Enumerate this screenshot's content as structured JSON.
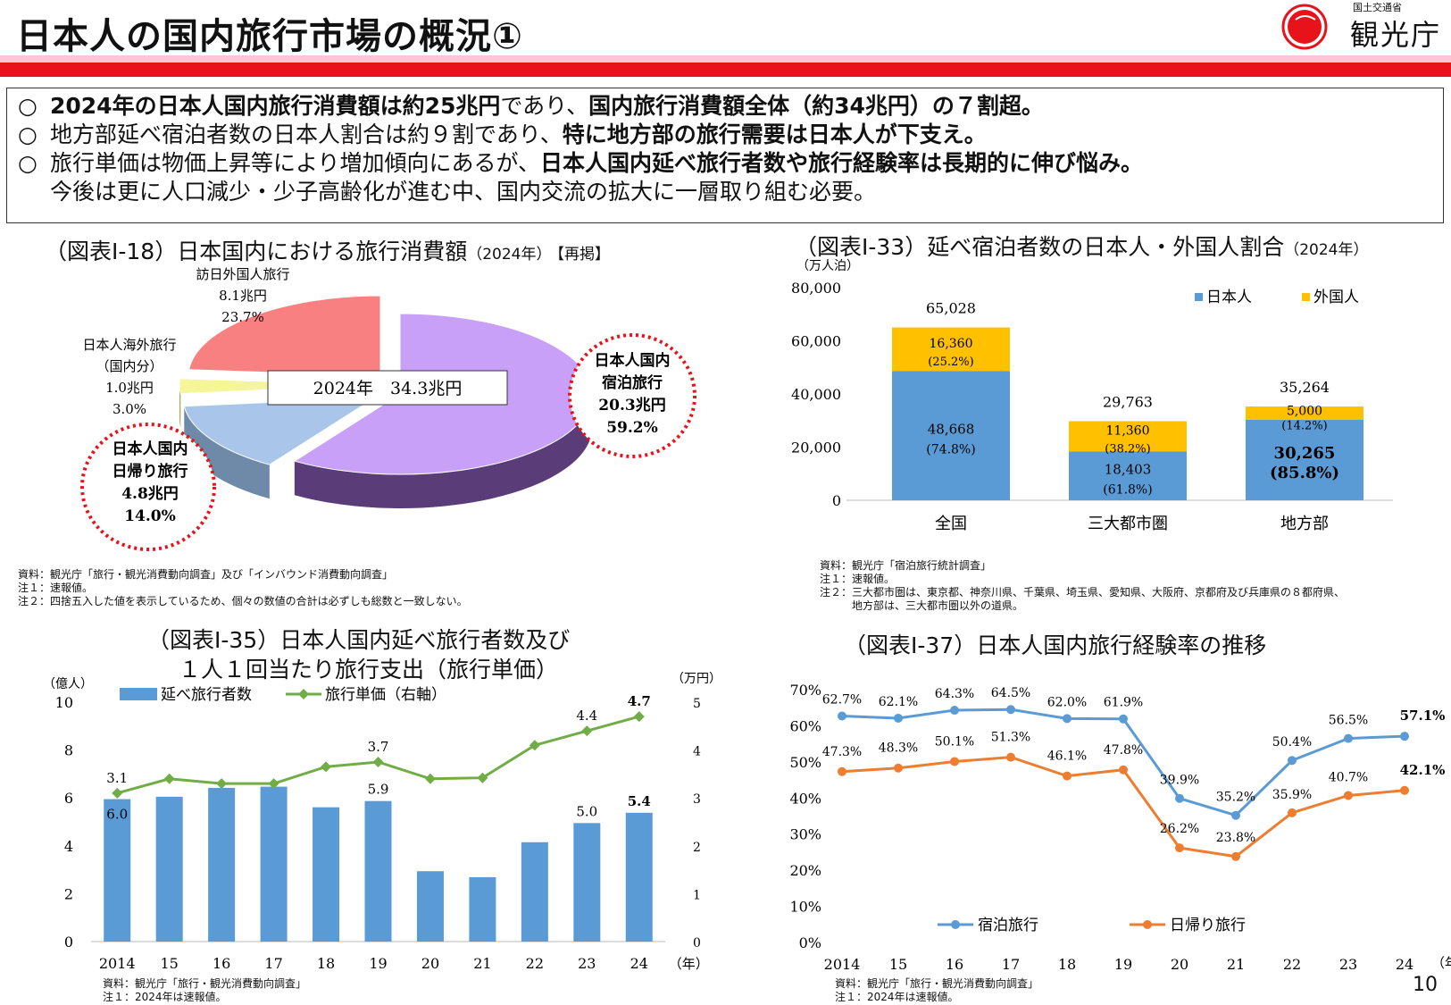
{
  "header": {
    "title": "日本人の国内旅行市場の概況①",
    "logo_sub": "国土交通省",
    "logo_main": "観光庁"
  },
  "summary": [
    {
      "bullet": "○",
      "parts": [
        {
          "t": "2024年の日本人国内旅行消費額は約25兆円",
          "b": true
        },
        {
          "t": "であり、",
          "b": false
        },
        {
          "t": "国内旅行消費額全体（約34兆円）の７割超。",
          "b": true
        }
      ]
    },
    {
      "bullet": "○",
      "parts": [
        {
          "t": "地方部延べ宿泊者数の日本人割合は約９割であり、",
          "b": false
        },
        {
          "t": "特に地方部の旅行需要は日本人が下支え。",
          "b": true
        }
      ]
    },
    {
      "bullet": "○",
      "parts": [
        {
          "t": "旅行単価は物価上昇等により増加傾向にあるが、",
          "b": false
        },
        {
          "t": "日本人国内延べ旅行者数や旅行経験率は長期的に伸び悩み。",
          "b": true
        }
      ]
    },
    {
      "bullet": "",
      "parts": [
        {
          "t": "今後は更に人口減少・少子高齢化が進む中、国内交流の拡大に一層取り組む必要。",
          "b": false
        }
      ]
    }
  ],
  "pie": {
    "title": "（図表Ⅰ-18）日本国内における旅行消費額",
    "title_small": "（2024年）",
    "title_tag": "【再掲】",
    "center_label": "2024年　34.3兆円",
    "notes": [
      "資料：観光庁「旅行・観光消費動向調査」及び「インバウンド消費動向調査」",
      "注１：速報値。",
      "注２：四捨五入した値を表示しているため、個々の数値の合計は必ずしも総数と一致しない。"
    ],
    "colors": {
      "overnight": "#c8a0f8",
      "day": "#a9c6ea",
      "outbound": "#f5f59a",
      "inbound": "#f88080",
      "circle": "#e8121b"
    }
  },
  "bar33": {
    "title": "（図表Ⅰ-33）延べ宿泊者数の日本人・外国人割合",
    "title_small": "（2024年）",
    "unit": "（万人泊）",
    "notes": [
      "資料：観光庁「宿泊旅行統計調査」",
      "注１：速報値。",
      "注２：三大都市圏は、東京都、神奈川県、千葉県、埼玉県、愛知県、大阪府、京都府及び兵庫県の８都府県、",
      "　　　地方部は、三大都市圏以外の道県。"
    ]
  },
  "combo35": {
    "title_line1": "（図表Ⅰ-35）日本人国内延べ旅行者数及び",
    "title_line2": "１人１回当たり旅行支出（旅行単価）",
    "unit_left": "（億人）",
    "unit_right": "（万円）",
    "year_unit": "（年）",
    "notes": [
      "資料：観光庁「旅行・観光消費動向調査」",
      "注１：2024年は速報値。"
    ]
  },
  "line37": {
    "title": "（図表Ⅰ-37）日本人国内旅行経験率の推移",
    "year_unit": "（年）",
    "notes": [
      "資料：観光庁「旅行・観光消費動向調査」",
      "注１：2024年は速報値。"
    ]
  },
  "page_number": "10",
  "chart_data": [
    {
      "type": "pie",
      "title": "（図表Ⅰ-18）日本国内における旅行消費額（2024年）【再掲】",
      "slices": [
        {
          "label_lines": [
            "日本人国内",
            "宿泊旅行"
          ],
          "value_text": "20.3兆円",
          "pct_text": "59.2%",
          "value": 20.3,
          "pct": 59.2
        },
        {
          "label_lines": [
            "日本人国内",
            "日帰り旅行"
          ],
          "value_text": "4.8兆円",
          "pct_text": "14.0%",
          "value": 4.8,
          "pct": 14.0
        },
        {
          "label_lines": [
            "日本人海外旅行",
            "（国内分）"
          ],
          "value_text": "1.0兆円",
          "pct_text": "3.0%",
          "value": 1.0,
          "pct": 3.0
        },
        {
          "label_lines": [
            "訪日外国人旅行"
          ],
          "value_text": "8.1兆円",
          "pct_text": "23.7%",
          "value": 8.1,
          "pct": 23.7
        }
      ]
    },
    {
      "type": "bar",
      "stacked": true,
      "title": "（図表Ⅰ-33）延べ宿泊者数の日本人・外国人割合（2024年）",
      "categories": [
        "全国",
        "三大都市圏",
        "地方部"
      ],
      "totals_text": [
        "65,028",
        "29,763",
        "35,264"
      ],
      "ylim": [
        0,
        80000
      ],
      "yticks": [
        0,
        20000,
        40000,
        60000,
        80000
      ],
      "ytick_labels": [
        "0",
        "20,000",
        "40,000",
        "60,000",
        "80,000"
      ],
      "series": [
        {
          "name": "日本人",
          "color": "#5b9bd5",
          "values": [
            48668,
            18403,
            30265
          ],
          "labels": [
            "48,668",
            "18,403",
            "30,265"
          ],
          "pct": [
            "(74.8%)",
            "(61.8%)",
            "(85.8%)"
          ]
        },
        {
          "name": "外国人",
          "color": "#ffc000",
          "values": [
            16360,
            11360,
            5000
          ],
          "labels": [
            "16,360",
            "11,360",
            "5,000"
          ],
          "pct": [
            "(25.2%)",
            "(38.2%)",
            "(14.2%)"
          ]
        }
      ],
      "legend": "top-right"
    },
    {
      "type": "bar",
      "title": "（図表Ⅰ-35）日本人国内延べ旅行者数及び１人１回当たり旅行支出（旅行単価）",
      "categories": [
        "2014",
        "15",
        "16",
        "17",
        "18",
        "19",
        "20",
        "21",
        "22",
        "23",
        "24"
      ],
      "ylim": [
        0,
        10
      ],
      "y2lim": [
        0,
        5
      ],
      "yticks": [
        "0",
        "2",
        "4",
        "6",
        "8",
        "10"
      ],
      "y2ticks": [
        "0",
        "1",
        "2",
        "3",
        "4",
        "5"
      ],
      "series": [
        {
          "name": "延べ旅行者数",
          "color": "#5b9bd5",
          "axis": "left",
          "values": [
            5.95,
            6.05,
            6.42,
            6.47,
            5.61,
            5.87,
            2.94,
            2.69,
            4.15,
            4.95,
            5.38
          ],
          "point_labels": {
            "0": "6.0",
            "5": "5.9",
            "9": "5.0",
            "10": "5.4"
          }
        },
        {
          "name": "旅行単価（右軸）",
          "color": "#70ad47",
          "axis": "right",
          "type": "line",
          "values": [
            3.1,
            3.4,
            3.3,
            3.3,
            3.65,
            3.75,
            3.4,
            3.42,
            4.1,
            4.4,
            4.7
          ],
          "point_labels": {
            "0": "3.1",
            "5": "3.7",
            "9": "4.4",
            "10": "4.7"
          }
        }
      ],
      "legend": "top-left"
    },
    {
      "type": "line",
      "title": "（図表Ⅰ-37）日本人国内旅行経験率の推移",
      "categories": [
        "2014",
        "15",
        "16",
        "17",
        "18",
        "19",
        "20",
        "21",
        "22",
        "23",
        "24"
      ],
      "ylim": [
        0,
        70
      ],
      "yticks": [
        "0%",
        "10%",
        "20%",
        "30%",
        "40%",
        "50%",
        "60%",
        "70%"
      ],
      "series": [
        {
          "name": "宿泊旅行",
          "color": "#5b9bd5",
          "values": [
            62.7,
            62.1,
            64.3,
            64.5,
            62.0,
            61.9,
            39.9,
            35.2,
            50.4,
            56.5,
            57.1
          ],
          "labels": [
            "62.7%",
            "62.1%",
            "64.3%",
            "64.5%",
            "62.0%",
            "61.9%",
            "39.9%",
            "35.2%",
            "50.4%",
            "56.5%",
            "57.1%"
          ]
        },
        {
          "name": "日帰り旅行",
          "color": "#ed7d31",
          "values": [
            47.3,
            48.3,
            50.1,
            51.3,
            46.1,
            47.8,
            26.2,
            23.8,
            35.9,
            40.7,
            42.1
          ],
          "labels": [
            "47.3%",
            "48.3%",
            "50.1%",
            "51.3%",
            "46.1%",
            "47.8%",
            "26.2%",
            "23.8%",
            "35.9%",
            "40.7%",
            "42.1%"
          ]
        }
      ],
      "legend": "bottom"
    }
  ]
}
